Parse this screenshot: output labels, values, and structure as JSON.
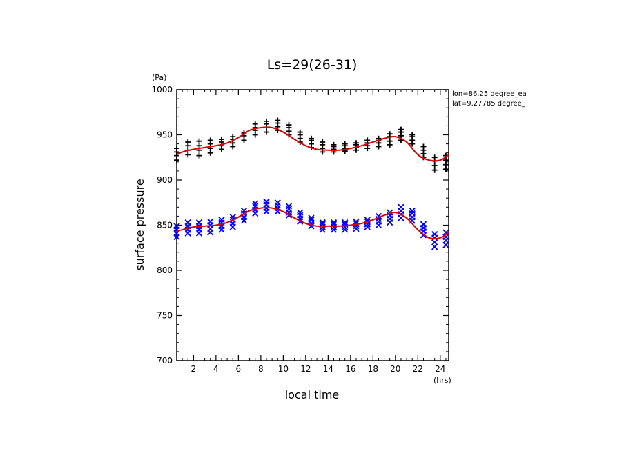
{
  "chart_data": {
    "type": "scatter",
    "title": "Ls=29(26-31)",
    "xlabel": "local time",
    "ylabel": "surface pressure",
    "x_unit": "(hrs)",
    "y_unit": "(Pa)",
    "xlim": [
      0.5,
      24.75
    ],
    "ylim": [
      700,
      1000
    ],
    "x_ticks": [
      2,
      4,
      6,
      8,
      10,
      12,
      14,
      16,
      18,
      20,
      22,
      24
    ],
    "y_ticks": [
      700,
      750,
      800,
      850,
      900,
      950,
      1000
    ],
    "annotation": [
      "lon=86.25 degree_ea",
      "lat=9.27785 degree_"
    ],
    "grid": false,
    "series": [
      {
        "marker": "plus",
        "color": "#000000",
        "points": [
          [
            0.5,
            922
          ],
          [
            0.5,
            927
          ],
          [
            0.5,
            931
          ],
          [
            0.5,
            935
          ],
          [
            1.5,
            928
          ],
          [
            1.5,
            933
          ],
          [
            1.5,
            938
          ],
          [
            1.5,
            942
          ],
          [
            2.5,
            927
          ],
          [
            2.5,
            933
          ],
          [
            2.5,
            938
          ],
          [
            2.5,
            943
          ],
          [
            3.5,
            930
          ],
          [
            3.5,
            935
          ],
          [
            3.5,
            940
          ],
          [
            3.5,
            944
          ],
          [
            4.5,
            934
          ],
          [
            4.5,
            938
          ],
          [
            4.5,
            942
          ],
          [
            4.5,
            945
          ],
          [
            5.5,
            937
          ],
          [
            5.5,
            941
          ],
          [
            5.5,
            945
          ],
          [
            5.5,
            948
          ],
          [
            6.5,
            944
          ],
          [
            6.5,
            949
          ],
          [
            6.5,
            952
          ],
          [
            7.5,
            950
          ],
          [
            7.5,
            955
          ],
          [
            7.5,
            958
          ],
          [
            7.5,
            962
          ],
          [
            8.5,
            953
          ],
          [
            8.5,
            958
          ],
          [
            8.5,
            962
          ],
          [
            8.5,
            965
          ],
          [
            9.5,
            955
          ],
          [
            9.5,
            959
          ],
          [
            9.5,
            963
          ],
          [
            9.5,
            966
          ],
          [
            10.5,
            950
          ],
          [
            10.5,
            954
          ],
          [
            10.5,
            958
          ],
          [
            10.5,
            961
          ],
          [
            11.5,
            942
          ],
          [
            11.5,
            946
          ],
          [
            11.5,
            950
          ],
          [
            11.5,
            953
          ],
          [
            12.5,
            936
          ],
          [
            12.5,
            940
          ],
          [
            12.5,
            944
          ],
          [
            12.5,
            946
          ],
          [
            13.5,
            931
          ],
          [
            13.5,
            935
          ],
          [
            13.5,
            939
          ],
          [
            13.5,
            942
          ],
          [
            14.5,
            931
          ],
          [
            14.5,
            934
          ],
          [
            14.5,
            937
          ],
          [
            14.5,
            939
          ],
          [
            15.5,
            932
          ],
          [
            15.5,
            935
          ],
          [
            15.5,
            938
          ],
          [
            15.5,
            940
          ],
          [
            16.5,
            933
          ],
          [
            16.5,
            936
          ],
          [
            16.5,
            939
          ],
          [
            16.5,
            941
          ],
          [
            17.5,
            935
          ],
          [
            17.5,
            938
          ],
          [
            17.5,
            941
          ],
          [
            17.5,
            944
          ],
          [
            18.5,
            937
          ],
          [
            18.5,
            941
          ],
          [
            18.5,
            944
          ],
          [
            18.5,
            946
          ],
          [
            19.5,
            939
          ],
          [
            19.5,
            943
          ],
          [
            19.5,
            948
          ],
          [
            19.5,
            951
          ],
          [
            20.5,
            944
          ],
          [
            20.5,
            949
          ],
          [
            20.5,
            953
          ],
          [
            20.5,
            956
          ],
          [
            21.5,
            940
          ],
          [
            21.5,
            944
          ],
          [
            21.5,
            948
          ],
          [
            21.5,
            950
          ],
          [
            22.5,
            925
          ],
          [
            22.5,
            929
          ],
          [
            22.5,
            933
          ],
          [
            22.5,
            937
          ],
          [
            23.5,
            911
          ],
          [
            23.5,
            916
          ],
          [
            23.5,
            921
          ],
          [
            23.5,
            925
          ],
          [
            24.5,
            912
          ],
          [
            24.5,
            917
          ],
          [
            24.5,
            922
          ],
          [
            24.5,
            927
          ]
        ]
      },
      {
        "marker": "cross",
        "color": "#0000ff",
        "points": [
          [
            0.5,
            837
          ],
          [
            0.5,
            841
          ],
          [
            0.5,
            845
          ],
          [
            0.5,
            849
          ],
          [
            1.5,
            841
          ],
          [
            1.5,
            845
          ],
          [
            1.5,
            849
          ],
          [
            1.5,
            853
          ],
          [
            2.5,
            841
          ],
          [
            2.5,
            845
          ],
          [
            2.5,
            849
          ],
          [
            2.5,
            853
          ],
          [
            3.5,
            842
          ],
          [
            3.5,
            846
          ],
          [
            3.5,
            850
          ],
          [
            3.5,
            854
          ],
          [
            4.5,
            845
          ],
          [
            4.5,
            849
          ],
          [
            4.5,
            853
          ],
          [
            4.5,
            856
          ],
          [
            5.5,
            848
          ],
          [
            5.5,
            852
          ],
          [
            5.5,
            856
          ],
          [
            5.5,
            859
          ],
          [
            6.5,
            855
          ],
          [
            6.5,
            859
          ],
          [
            6.5,
            863
          ],
          [
            6.5,
            866
          ],
          [
            7.5,
            863
          ],
          [
            7.5,
            867
          ],
          [
            7.5,
            871
          ],
          [
            7.5,
            874
          ],
          [
            8.5,
            865
          ],
          [
            8.5,
            869
          ],
          [
            8.5,
            873
          ],
          [
            8.5,
            876
          ],
          [
            9.5,
            865
          ],
          [
            9.5,
            869
          ],
          [
            9.5,
            872
          ],
          [
            9.5,
            875
          ],
          [
            10.5,
            861
          ],
          [
            10.5,
            864
          ],
          [
            10.5,
            868
          ],
          [
            10.5,
            871
          ],
          [
            11.5,
            854
          ],
          [
            11.5,
            857
          ],
          [
            11.5,
            861
          ],
          [
            11.5,
            864
          ],
          [
            12.5,
            849
          ],
          [
            12.5,
            852
          ],
          [
            12.5,
            856
          ],
          [
            12.5,
            858
          ],
          [
            13.5,
            845
          ],
          [
            13.5,
            848
          ],
          [
            13.5,
            851
          ],
          [
            13.5,
            853
          ],
          [
            14.5,
            845
          ],
          [
            14.5,
            848
          ],
          [
            14.5,
            851
          ],
          [
            14.5,
            853
          ],
          [
            15.5,
            845
          ],
          [
            15.5,
            848
          ],
          [
            15.5,
            851
          ],
          [
            15.5,
            853
          ],
          [
            16.5,
            846
          ],
          [
            16.5,
            849
          ],
          [
            16.5,
            852
          ],
          [
            16.5,
            854
          ],
          [
            17.5,
            848
          ],
          [
            17.5,
            851
          ],
          [
            17.5,
            854
          ],
          [
            17.5,
            856
          ],
          [
            18.5,
            850
          ],
          [
            18.5,
            854
          ],
          [
            18.5,
            857
          ],
          [
            18.5,
            860
          ],
          [
            19.5,
            853
          ],
          [
            19.5,
            857
          ],
          [
            19.5,
            861
          ],
          [
            19.5,
            864
          ],
          [
            20.5,
            858
          ],
          [
            20.5,
            862
          ],
          [
            20.5,
            866
          ],
          [
            20.5,
            870
          ],
          [
            21.5,
            855
          ],
          [
            21.5,
            859
          ],
          [
            21.5,
            863
          ],
          [
            21.5,
            866
          ],
          [
            22.5,
            839
          ],
          [
            22.5,
            843
          ],
          [
            22.5,
            847
          ],
          [
            22.5,
            851
          ],
          [
            23.5,
            826
          ],
          [
            23.5,
            831
          ],
          [
            23.5,
            836
          ],
          [
            23.5,
            840
          ],
          [
            24.5,
            828
          ],
          [
            24.5,
            833
          ],
          [
            24.5,
            837
          ],
          [
            24.5,
            842
          ]
        ]
      }
    ],
    "fit_lines": [
      {
        "color": "#dd0000",
        "x": [
          0.5,
          1,
          2,
          3,
          4,
          5,
          6,
          7,
          8,
          9,
          10,
          11,
          12,
          13,
          14,
          15,
          16,
          17,
          18,
          19,
          20,
          21,
          22,
          23,
          24,
          24.75
        ],
        "y": [
          928,
          931,
          934,
          936,
          938,
          941,
          947,
          955,
          958,
          958,
          953,
          945,
          938,
          934,
          933,
          933,
          935,
          938,
          942,
          946,
          948,
          942,
          928,
          922,
          922,
          928
        ]
      },
      {
        "color": "#dd0000",
        "x": [
          0.5,
          1,
          2,
          3,
          4,
          5,
          6,
          7,
          8,
          9,
          10,
          11,
          12,
          13,
          14,
          15,
          16,
          17,
          18,
          19,
          20,
          21,
          22,
          23,
          24,
          24.75
        ],
        "y": [
          843,
          845,
          848,
          849,
          850,
          853,
          859,
          866,
          869,
          869,
          865,
          858,
          852,
          849,
          849,
          849,
          850,
          852,
          856,
          861,
          864,
          858,
          845,
          836,
          836,
          842
        ]
      }
    ]
  }
}
